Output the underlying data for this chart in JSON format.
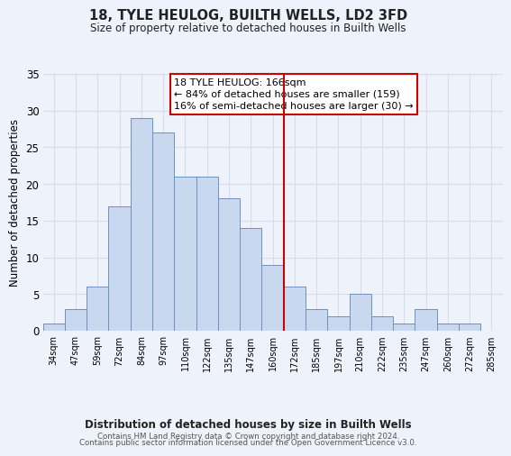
{
  "title": "18, TYLE HEULOG, BUILTH WELLS, LD2 3FD",
  "subtitle": "Size of property relative to detached houses in Builth Wells",
  "xlabel": "Distribution of detached houses by size in Builth Wells",
  "ylabel": "Number of detached properties",
  "bin_labels": [
    "34sqm",
    "47sqm",
    "59sqm",
    "72sqm",
    "84sqm",
    "97sqm",
    "110sqm",
    "122sqm",
    "135sqm",
    "147sqm",
    "160sqm",
    "172sqm",
    "185sqm",
    "197sqm",
    "210sqm",
    "222sqm",
    "235sqm",
    "247sqm",
    "260sqm",
    "272sqm",
    "285sqm"
  ],
  "bar_heights": [
    1,
    3,
    6,
    17,
    29,
    27,
    21,
    21,
    18,
    14,
    9,
    6,
    3,
    2,
    5,
    2,
    1,
    3,
    1,
    1,
    0
  ],
  "bar_color": "#c8d8ef",
  "bar_edge_color": "#7090c0",
  "vline_x_bar_index": 10,
  "vline_color": "#cc0000",
  "annotation_title": "18 TYLE HEULOG: 166sqm",
  "annotation_line1": "← 84% of detached houses are smaller (159)",
  "annotation_line2": "16% of semi-detached houses are larger (30) →",
  "annotation_box_color": "#cc0000",
  "ylim": [
    0,
    35
  ],
  "yticks": [
    0,
    5,
    10,
    15,
    20,
    25,
    30,
    35
  ],
  "footer1": "Contains HM Land Registry data © Crown copyright and database right 2024.",
  "footer2": "Contains public sector information licensed under the Open Government Licence v3.0.",
  "bg_color": "#eef2fa",
  "grid_color": "#d8dce8"
}
